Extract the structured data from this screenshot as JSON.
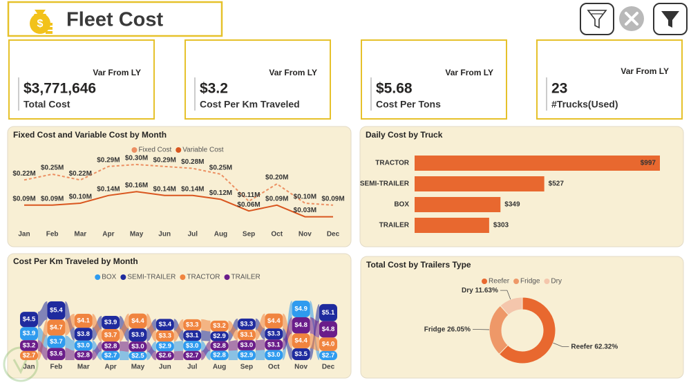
{
  "header": {
    "title": "Fleet Cost"
  },
  "kpis": [
    {
      "title": "Var From LY",
      "value": "$3,771,646",
      "label": "Total Cost"
    },
    {
      "title": "Var From LY",
      "value": "$3.2",
      "label": "Cost Per Km Traveled"
    },
    {
      "title": "Var From LY",
      "value": "$5.68",
      "label": "Cost Per Tons"
    },
    {
      "title": "Var From LY",
      "value": 23,
      "label": "#Trucks(Used)"
    }
  ],
  "chart_data": [
    {
      "type": "line",
      "title": "Fixed Cost and Variable Cost by Month",
      "categories": [
        "Jan",
        "Feb",
        "Mar",
        "Apr",
        "May",
        "Jun",
        "Jul",
        "Aug",
        "Sep",
        "Oct",
        "Nov",
        "Dec"
      ],
      "series": [
        {
          "name": "Fixed Cost",
          "color": "#ec8f62",
          "dashed": true,
          "values": [
            0.22,
            0.25,
            0.22,
            0.29,
            0.3,
            0.29,
            0.28,
            0.25,
            0.11,
            0.2,
            0.1,
            0.09
          ],
          "value_labels": [
            "$0.22M",
            "$0.25M",
            "$0.22M",
            "$0.29M",
            "$0.30M",
            "$0.29M",
            "$0.28M",
            "$0.25M",
            "$0.11M",
            "$0.20M",
            "$0.10M",
            "$0.09M"
          ]
        },
        {
          "name": "Variable Cost",
          "color": "#d9561f",
          "values": [
            0.09,
            0.09,
            0.1,
            0.14,
            0.16,
            0.14,
            0.14,
            0.12,
            0.06,
            0.09,
            0.03,
            0.03
          ],
          "value_labels": [
            "$0.09M",
            "$0.09M",
            "$0.10M",
            "$0.14M",
            "$0.16M",
            "$0.14M",
            "$0.14M",
            "$0.12M",
            "$0.06M",
            "$0.09M",
            "$0.03M",
            null
          ]
        }
      ]
    },
    {
      "type": "hbar",
      "title": "Daily Cost by Truck",
      "color": "#e8682f",
      "categories": [
        "TRACTOR",
        "SEMI-TRAILER",
        "BOX",
        "TRAILER"
      ],
      "values": [
        997,
        527,
        349,
        303
      ],
      "value_labels": [
        "$997",
        "$527",
        "$349",
        "$303"
      ]
    },
    {
      "type": "ribbon",
      "title": "Cost Per Km Traveled by Month",
      "categories": [
        "Jan",
        "Feb",
        "Mar",
        "Apr",
        "May",
        "Jun",
        "Jul",
        "Aug",
        "Sep",
        "Oct",
        "Nov",
        "Dec"
      ],
      "series": [
        {
          "name": "BOX",
          "color": "#2f9bef",
          "values": [
            3.9,
            3.7,
            3.0,
            2.7,
            2.5,
            2.9,
            3.0,
            2.8,
            2.9,
            3.0,
            4.9,
            2.7
          ],
          "value_labels": [
            "$3.9",
            "$3.7",
            "$3.0",
            "$2.7",
            "$2.5",
            "$2.9",
            "$3.0",
            "$2.8",
            "$2.9",
            "$3.0",
            "$4.9",
            "$2.7"
          ]
        },
        {
          "name": "SEMI-TRAILER",
          "color": "#1f2b9e",
          "values": [
            4.5,
            5.4,
            3.8,
            3.9,
            3.9,
            3.4,
            3.1,
            2.9,
            3.3,
            3.3,
            3.5,
            5.1
          ],
          "value_labels": [
            "$4.5",
            "$5.4",
            "$3.8",
            "$3.9",
            "$3.9",
            "$3.4",
            "$3.1",
            "$2.9",
            "$3.3",
            "$3.3",
            "$3.5",
            "$5.1"
          ]
        },
        {
          "name": "TRACTOR",
          "color": "#f0843f",
          "values": [
            2.7,
            4.7,
            4.1,
            3.7,
            4.4,
            3.3,
            3.3,
            3.2,
            3.1,
            4.4,
            4.4,
            4.0
          ],
          "value_labels": [
            "$2.7",
            "$4.7",
            "$4.1",
            "$3.7",
            "$4.4",
            "$3.3",
            "$3.3",
            "$3.2",
            "$3.1",
            "$4.4",
            "$4.4",
            "$4.0"
          ]
        },
        {
          "name": "TRAILER",
          "color": "#6a1d8a",
          "values": [
            3.2,
            3.6,
            2.8,
            2.8,
            3.0,
            2.6,
            2.7,
            2.8,
            3.0,
            3.1,
            4.8,
            4.8
          ],
          "value_labels": [
            "$3.2",
            "$3.6",
            "$2.8",
            "$2.8",
            "$3.0",
            "$2.6",
            "$2.7",
            "$2.8",
            "$3.0",
            "$3.1",
            "$4.8",
            "$4.8"
          ]
        }
      ]
    },
    {
      "type": "donut",
      "title": "Total Cost by Trailers Type",
      "categories": [
        "Reefer",
        "Fridge",
        "Dry"
      ],
      "values": [
        62.32,
        26.05,
        11.63
      ],
      "value_labels": [
        "62.32%",
        "26.05%",
        "11.63%"
      ],
      "colors": [
        "#e8682f",
        "#ee9868",
        "#f4c6ac"
      ]
    }
  ]
}
